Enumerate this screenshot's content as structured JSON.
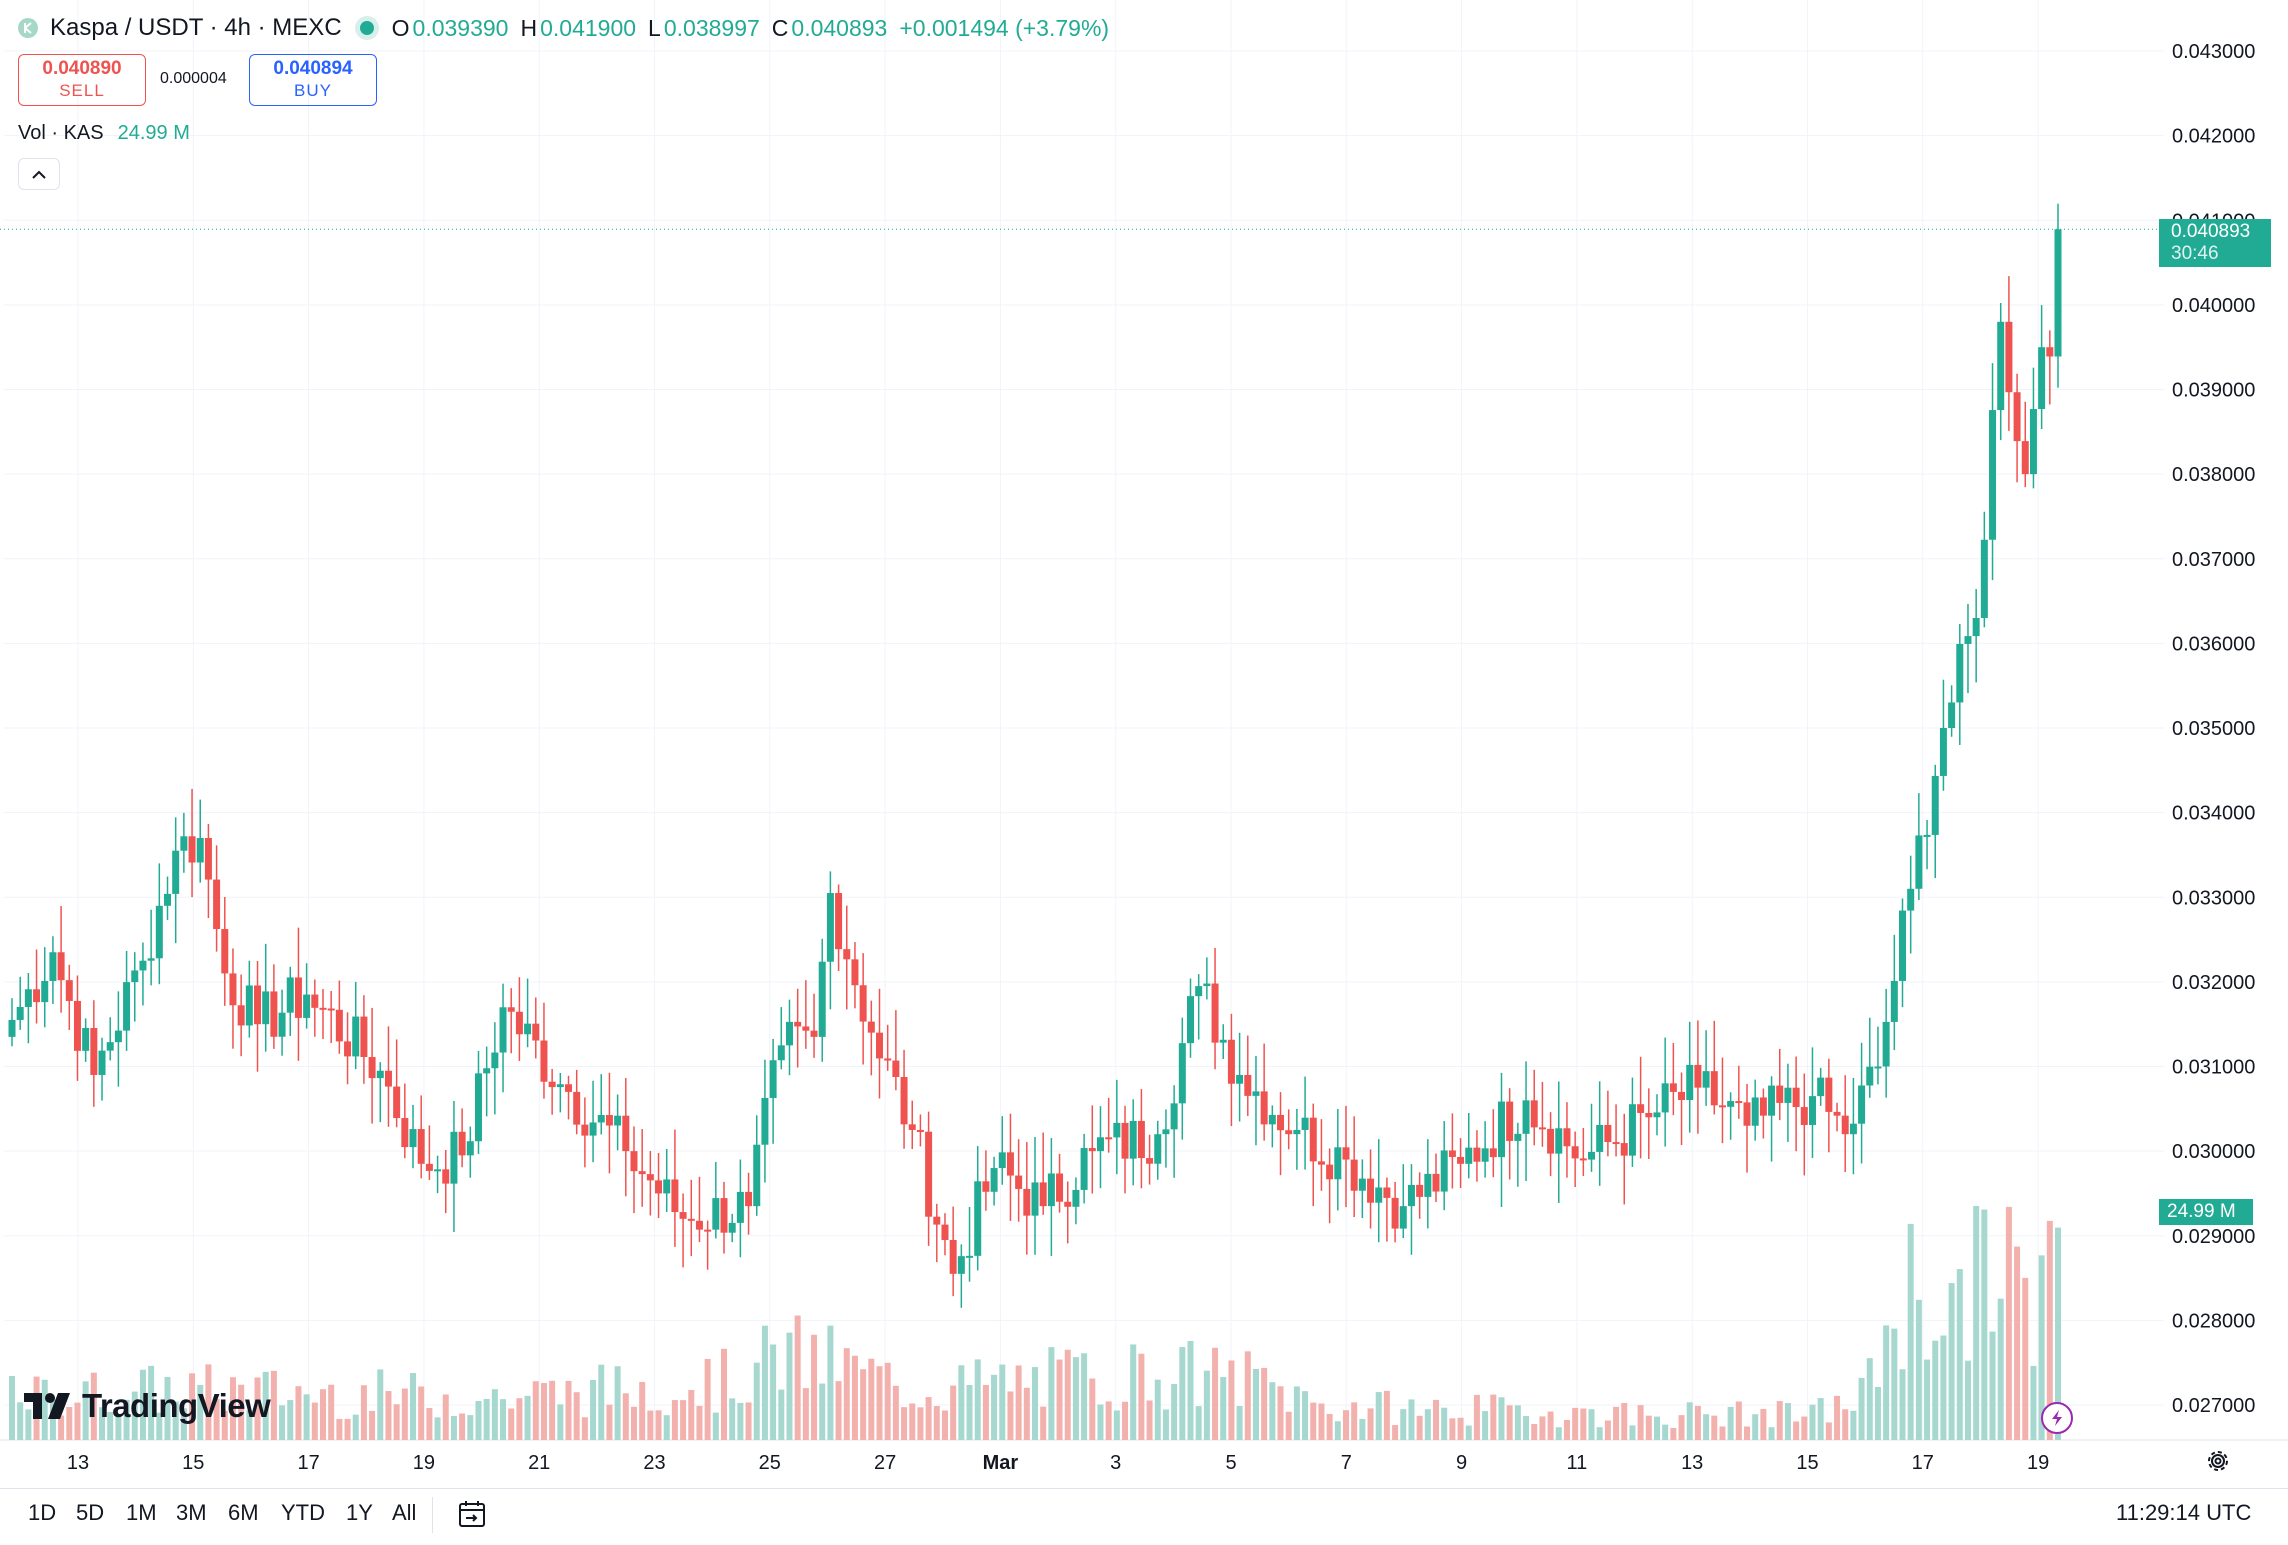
{
  "header": {
    "title": "Kaspa / USDT · 4h · MEXC",
    "ohlc": {
      "o_label": "O",
      "o": "0.039390",
      "h_label": "H",
      "h": "0.041900",
      "l_label": "L",
      "l": "0.038997",
      "c_label": "C",
      "c": "0.040893",
      "change": "+0.001494 (+3.79%)"
    }
  },
  "trade": {
    "sell_price": "0.040890",
    "sell_label": "SELL",
    "spread": "0.000004",
    "buy_price": "0.040894",
    "buy_label": "BUY"
  },
  "volume_legend": {
    "label": "Vol · KAS",
    "value": "24.99 M"
  },
  "last_price": {
    "price": "0.040893",
    "countdown": "30:46"
  },
  "volume_tag": "24.99 M",
  "brand": "TradingView",
  "time_ranges": [
    "1D",
    "5D",
    "1M",
    "3M",
    "6M",
    "YTD",
    "1Y",
    "All"
  ],
  "clock": "11:29:14 UTC",
  "colors": {
    "up": "#22ab94",
    "down": "#ef5350",
    "up_volume": "#a6d8d0",
    "down_volume": "#f3b1ae",
    "grid": "#f0f3fa"
  },
  "icons": [
    "kaspa-logo-icon",
    "collapse-chevron-icon",
    "tradingview-logo-icon",
    "lightning-icon",
    "settings-gear-icon",
    "date-range-icon"
  ],
  "chart_data": {
    "type": "candlestick",
    "symbol": "Kaspa / USDT",
    "interval": "4h",
    "exchange": "MEXC",
    "y_ticks": [
      "0.043000",
      "0.042000",
      "0.041000",
      "0.040000",
      "0.039000",
      "0.038000",
      "0.037000",
      "0.036000",
      "0.035000",
      "0.034000",
      "0.033000",
      "0.032000",
      "0.031000",
      "0.030000",
      "0.029000",
      "0.028000",
      "0.027000"
    ],
    "x_ticks": [
      "13",
      "15",
      "17",
      "19",
      "21",
      "23",
      "25",
      "27",
      "Mar",
      "3",
      "5",
      "7",
      "9",
      "11",
      "13",
      "15",
      "17",
      "19"
    ],
    "ylim": [
      0.0266,
      0.0434
    ],
    "last_close": 0.040893,
    "volume_unit": "M",
    "waypoints": [
      {
        "i": 0,
        "c": 0.03155
      },
      {
        "i": 5,
        "c": 0.03235
      },
      {
        "i": 10,
        "c": 0.0309
      },
      {
        "i": 16,
        "c": 0.03225
      },
      {
        "i": 20,
        "c": 0.03355
      },
      {
        "i": 23,
        "c": 0.0337
      },
      {
        "i": 26,
        "c": 0.0321
      },
      {
        "i": 30,
        "c": 0.0315
      },
      {
        "i": 36,
        "c": 0.03185
      },
      {
        "i": 45,
        "c": 0.03095
      },
      {
        "i": 50,
        "c": 0.02985
      },
      {
        "i": 55,
        "c": 0.02995
      },
      {
        "i": 60,
        "c": 0.0317
      },
      {
        "i": 68,
        "c": 0.0307
      },
      {
        "i": 75,
        "c": 0.03
      },
      {
        "i": 82,
        "c": 0.0292
      },
      {
        "i": 90,
        "c": 0.02935
      },
      {
        "i": 94,
        "c": 0.03125
      },
      {
        "i": 98,
        "c": 0.03135
      },
      {
        "i": 100,
        "c": 0.03305
      },
      {
        "i": 105,
        "c": 0.0314
      },
      {
        "i": 110,
        "c": 0.03025
      },
      {
        "i": 115,
        "c": 0.02855
      },
      {
        "i": 120,
        "c": 0.0298
      },
      {
        "i": 126,
        "c": 0.02935
      },
      {
        "i": 132,
        "c": 0.03
      },
      {
        "i": 140,
        "c": 0.0302
      },
      {
        "i": 145,
        "c": 0.03195
      },
      {
        "i": 150,
        "c": 0.0309
      },
      {
        "i": 157,
        "c": 0.03025
      },
      {
        "i": 163,
        "c": 0.0299
      },
      {
        "i": 170,
        "c": 0.02935
      },
      {
        "i": 177,
        "c": 0.02985
      },
      {
        "i": 185,
        "c": 0.0306
      },
      {
        "i": 192,
        "c": 0.0299
      },
      {
        "i": 200,
        "c": 0.0304
      },
      {
        "i": 206,
        "c": 0.03075
      },
      {
        "i": 212,
        "c": 0.0303
      },
      {
        "i": 220,
        "c": 0.03065
      },
      {
        "i": 224,
        "c": 0.0302
      },
      {
        "i": 228,
        "c": 0.031
      },
      {
        "i": 232,
        "c": 0.0331
      },
      {
        "i": 236,
        "c": 0.035
      },
      {
        "i": 240,
        "c": 0.0363
      },
      {
        "i": 243,
        "c": 0.0398
      },
      {
        "i": 246,
        "c": 0.038
      },
      {
        "i": 248,
        "c": 0.0395
      },
      {
        "i": 249,
        "c": 0.03939
      },
      {
        "i": 250,
        "c": 0.040893
      }
    ],
    "volume_waypoints": [
      {
        "i": 0,
        "v": 5
      },
      {
        "i": 20,
        "v": 6
      },
      {
        "i": 60,
        "v": 5
      },
      {
        "i": 88,
        "v": 7
      },
      {
        "i": 94,
        "v": 10
      },
      {
        "i": 100,
        "v": 9
      },
      {
        "i": 110,
        "v": 6
      },
      {
        "i": 140,
        "v": 8
      },
      {
        "i": 152,
        "v": 7
      },
      {
        "i": 160,
        "v": 4
      },
      {
        "i": 200,
        "v": 3
      },
      {
        "i": 220,
        "v": 3
      },
      {
        "i": 226,
        "v": 5
      },
      {
        "i": 231,
        "v": 18
      },
      {
        "i": 238,
        "v": 15
      },
      {
        "i": 244,
        "v": 24
      },
      {
        "i": 247,
        "v": 10
      },
      {
        "i": 250,
        "v": 24.99
      }
    ]
  }
}
